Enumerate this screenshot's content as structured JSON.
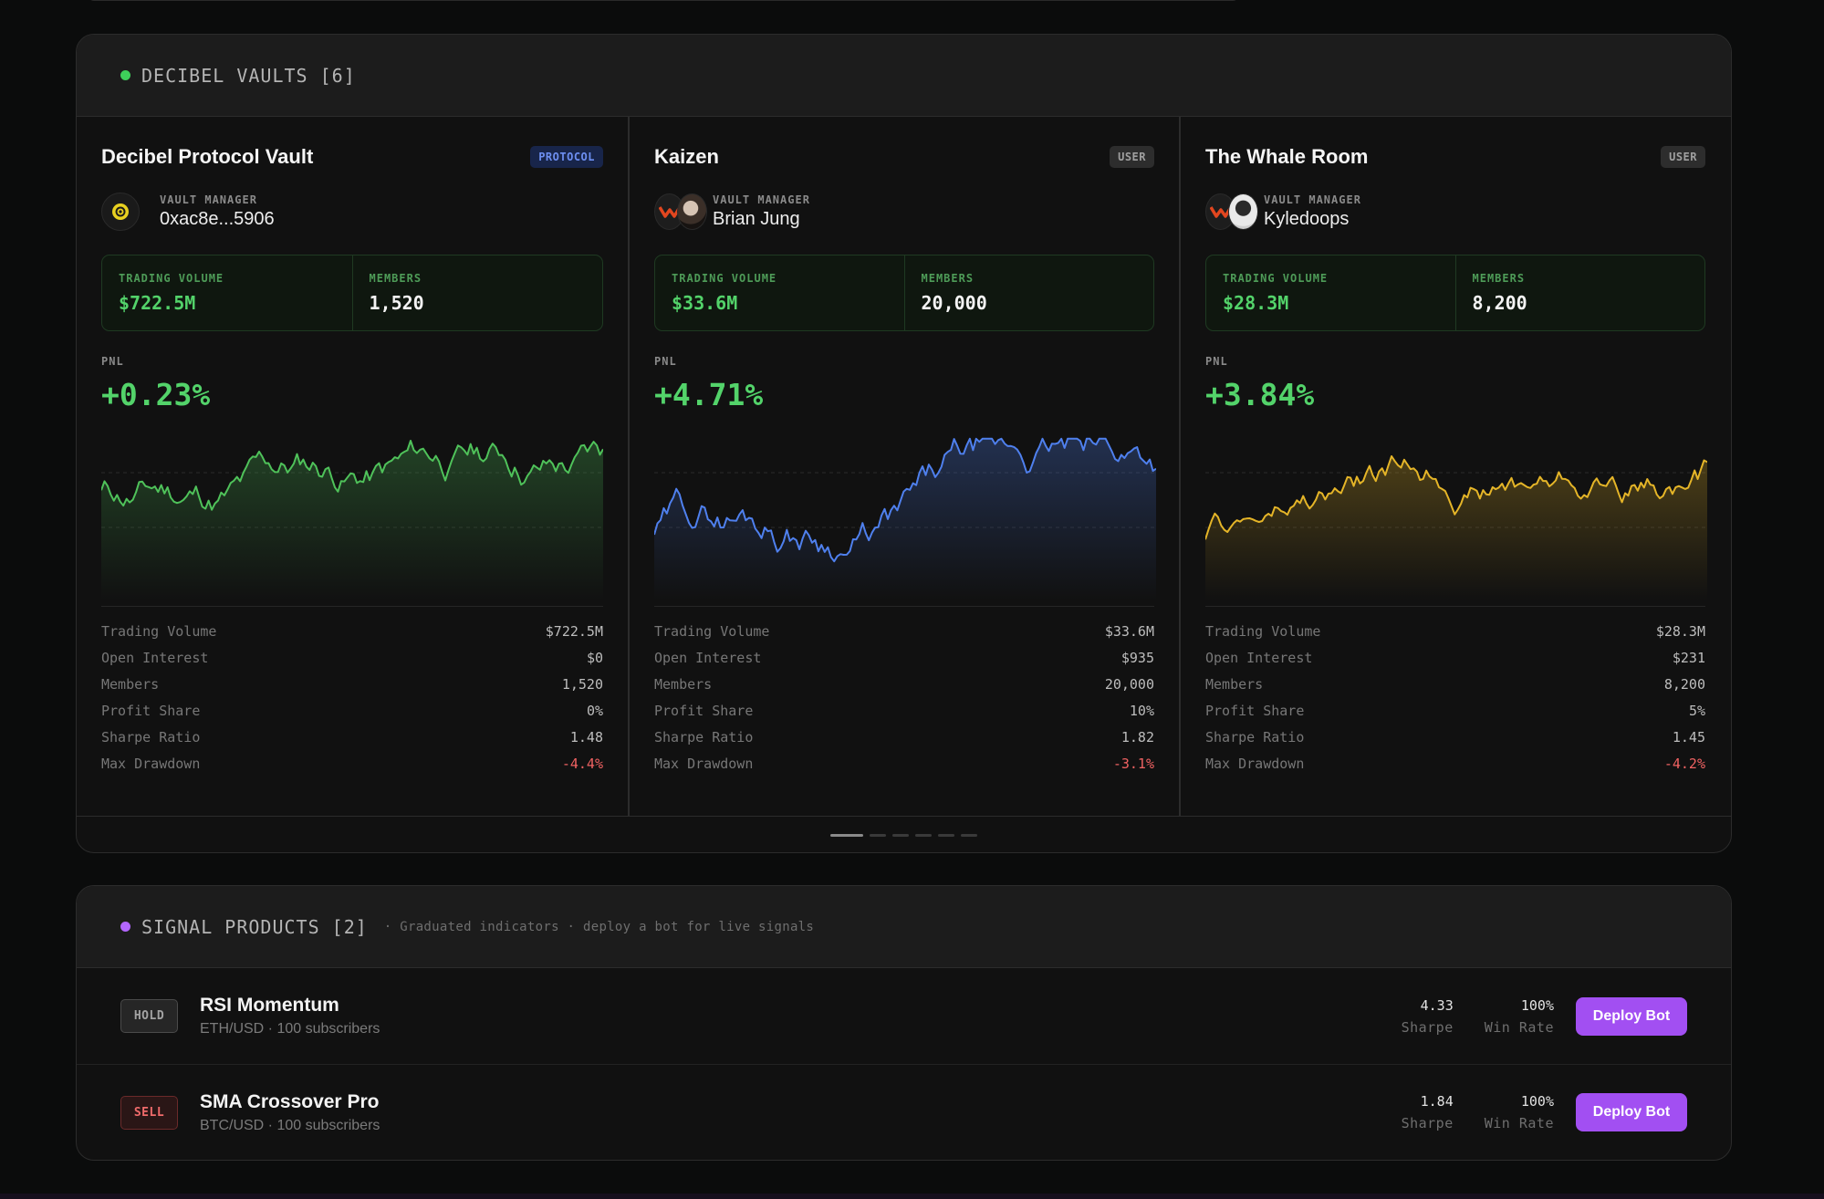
{
  "colors": {
    "vaults_dot": "#3ecf5a",
    "signals_dot": "#b366ff",
    "accent_purple": "#a24ff2",
    "pnl_green": "#53d36a",
    "negative_red": "#f06262"
  },
  "vaults_section": {
    "title": "DECIBEL VAULTS [6]",
    "pager_count": 6,
    "pager_active": 0,
    "metric_labels": {
      "trading_volume": "Trading Volume",
      "open_interest": "Open Interest",
      "members": "Members",
      "profit_share": "Profit Share",
      "sharpe_ratio": "Sharpe Ratio",
      "max_drawdown": "Max Drawdown"
    },
    "vaults": [
      {
        "name": "Decibel Protocol Vault",
        "badge": "PROTOCOL",
        "manager_label": "VAULT MANAGER",
        "manager_name": "0xac8e...5906",
        "avatar_icons": [
          "decibel-logo-icon"
        ],
        "stat_volume_label": "TRADING VOLUME",
        "stat_volume": "$722.5M",
        "stat_members_label": "MEMBERS",
        "stat_members": "1,520",
        "pnl_label": "PNL",
        "pnl": "+0.23%",
        "chart_color": "#4fc25a",
        "metrics": {
          "trading_volume": "$722.5M",
          "open_interest": "$0",
          "members": "1,520",
          "profit_share": "0%",
          "sharpe_ratio": "1.48",
          "max_drawdown": "-4.4%"
        }
      },
      {
        "name": "Kaizen",
        "badge": "USER",
        "manager_label": "VAULT MANAGER",
        "manager_name": "Brian Jung",
        "avatar_icons": [
          "brand-chevron-icon",
          "manager-photo-icon"
        ],
        "stat_volume_label": "TRADING VOLUME",
        "stat_volume": "$33.6M",
        "stat_members_label": "MEMBERS",
        "stat_members": "20,000",
        "pnl_label": "PNL",
        "pnl": "+4.71%",
        "chart_color": "#4f80ee",
        "metrics": {
          "trading_volume": "$33.6M",
          "open_interest": "$935",
          "members": "20,000",
          "profit_share": "10%",
          "sharpe_ratio": "1.82",
          "max_drawdown": "-3.1%"
        }
      },
      {
        "name": "The Whale Room",
        "badge": "USER",
        "manager_label": "VAULT MANAGER",
        "manager_name": "Kyledoops",
        "avatar_icons": [
          "brand-chevron-icon",
          "manager-photo-icon"
        ],
        "stat_volume_label": "TRADING VOLUME",
        "stat_volume": "$28.3M",
        "stat_members_label": "MEMBERS",
        "stat_members": "8,200",
        "pnl_label": "PNL",
        "pnl": "+3.84%",
        "chart_color": "#e5b528",
        "metrics": {
          "trading_volume": "$28.3M",
          "open_interest": "$231",
          "members": "8,200",
          "profit_share": "5%",
          "sharpe_ratio": "1.45",
          "max_drawdown": "-4.2%"
        }
      }
    ]
  },
  "signals_section": {
    "title": "SIGNAL PRODUCTS [2]",
    "subtitle": "· Graduated indicators · deploy a bot for live signals",
    "items": [
      {
        "badge": "HOLD",
        "name": "RSI Momentum",
        "meta": "ETH/USD · 100 subscribers",
        "sharpe": "4.33",
        "sharpe_label": "Sharpe",
        "win_rate": "100%",
        "win_rate_label": "Win Rate",
        "button": "Deploy Bot"
      },
      {
        "badge": "SELL",
        "name": "SMA Crossover Pro",
        "meta": "BTC/USD · 100 subscribers",
        "sharpe": "1.84",
        "sharpe_label": "Sharpe",
        "win_rate": "100%",
        "win_rate_label": "Win Rate",
        "button": "Deploy Bot"
      }
    ]
  }
}
